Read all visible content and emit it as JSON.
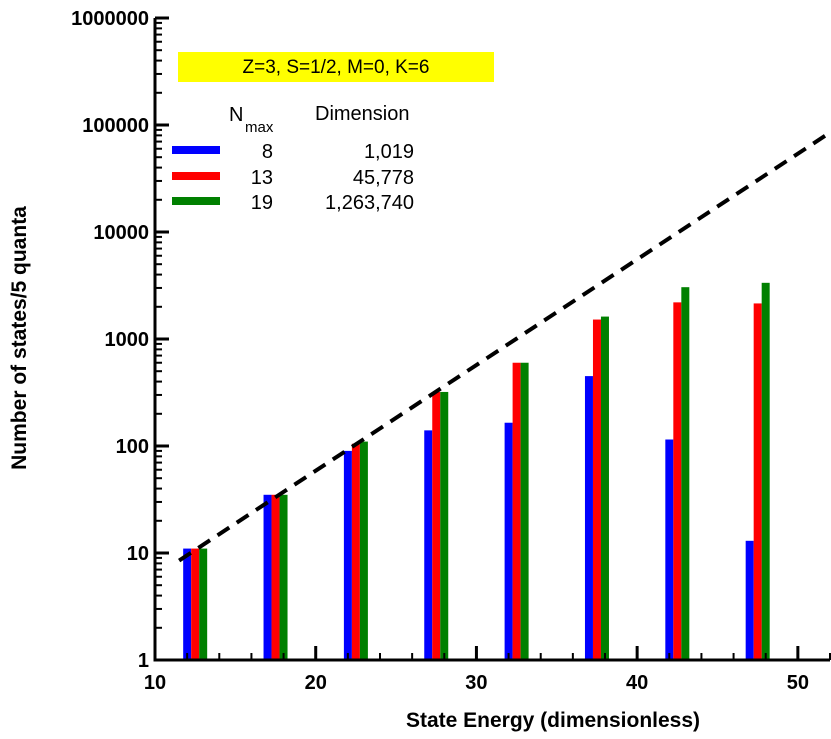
{
  "chart_data": {
    "type": "bar",
    "xlabel": "State Energy (dimensionless)",
    "ylabel": "Number of states/5 quanta",
    "xlim": [
      10,
      52
    ],
    "ylim": [
      1,
      1000000
    ],
    "yscale": "log",
    "x_ticks": [
      10,
      20,
      30,
      40,
      50
    ],
    "y_ticks": [
      1,
      10,
      100,
      1000,
      10000,
      100000,
      1000000
    ],
    "x_tick_labels": [
      "10",
      "20",
      "30",
      "40",
      "50"
    ],
    "y_tick_labels": [
      "1",
      "10",
      "100",
      "1000",
      "10000",
      "100000",
      "1000000"
    ],
    "categories": [
      12.5,
      17.5,
      22.5,
      27.5,
      32.5,
      37.5,
      42.5,
      47.5
    ],
    "series": [
      {
        "name": "8",
        "color": "#0000ff",
        "values": [
          11,
          35,
          90,
          140,
          165,
          450,
          115,
          13
        ]
      },
      {
        "name": "13",
        "color": "#ff0000",
        "values": [
          11,
          35,
          105,
          320,
          600,
          1520,
          2200,
          2150
        ]
      },
      {
        "name": "19",
        "color": "#008000",
        "values": [
          11,
          35,
          110,
          320,
          600,
          1620,
          3050,
          3350
        ]
      }
    ],
    "trend_line": {
      "style": "dashed",
      "color": "#000000",
      "x": [
        11.5,
        52
      ],
      "y": [
        8.5,
        85000
      ]
    },
    "annotation": {
      "text": "Z=3, S=1/2, M=0, K=6",
      "background": "#ffff00"
    },
    "legend": {
      "position": "top-left",
      "header_main": "N",
      "header_sub": "max",
      "header_dimension": "Dimension",
      "entries": [
        {
          "nmax": "8",
          "dimension": "1,019",
          "color": "#0000ff"
        },
        {
          "nmax": "13",
          "dimension": "45,778",
          "color": "#ff0000"
        },
        {
          "nmax": "19",
          "dimension": "1,263,740",
          "color": "#008000"
        }
      ]
    },
    "grid": false
  }
}
